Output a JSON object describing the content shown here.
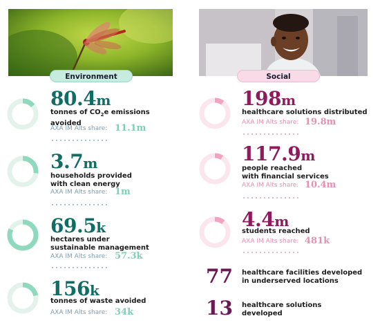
{
  "colors": {
    "environment_accent": "#0f6d63",
    "environment_ring": "#8fd9bf",
    "social_accent": "#8e1b5c",
    "social_ring": "#f2a3c1"
  },
  "environment": {
    "photo": "dragonfly-photo",
    "label": "Environment",
    "stats": [
      {
        "value": "80.4",
        "unit": "m",
        "line1_pre": "tonnes of CO",
        "line1_sub": "2",
        "line1_post": "e emissions",
        "line2": "avoided",
        "share_label": "AXA IM Alts share:",
        "share_value": "11.1m",
        "progress": 0.14
      },
      {
        "value": "3.7",
        "unit": "m",
        "line1": "households provided",
        "line2": "with clean energy",
        "share_label": "AXA IM Alts share:",
        "share_value": "1m",
        "progress": 0.27
      },
      {
        "value": "69.5",
        "unit": "k",
        "line1": "hectares under",
        "line2": "sustainable management",
        "share_label": "AXA IM Alts share:",
        "share_value": "57.3k",
        "progress": 0.82
      },
      {
        "value": "156",
        "unit": "k",
        "line1": "tonnes of waste avoided",
        "share_label": "AXA IM Alts share:",
        "share_value": "34k",
        "progress": 0.22
      }
    ]
  },
  "social": {
    "photo": "smiling-child-photo",
    "label": "Social",
    "stats": [
      {
        "value": "198",
        "unit": "m",
        "line1": "healthcare solutions distributed",
        "share_label": "AXA IM Alts share:",
        "share_value": "19.8m",
        "progress": 0.1
      },
      {
        "value": "117.9",
        "unit": "m",
        "line1": "people reached",
        "line2": "with financial services",
        "share_label": "AXA IM Alts share:",
        "share_value": "10.4m",
        "progress": 0.09
      },
      {
        "value": "4.4",
        "unit": "m",
        "line1": "students reached",
        "share_label": "AXA IM Alts share:",
        "share_value": "481k",
        "progress": 0.11
      }
    ],
    "extra": [
      {
        "value": "77",
        "line1": "healthcare facilities developed",
        "line2": "in underserved locations"
      },
      {
        "value": "13",
        "line1": "healthcare solutions",
        "line2": "developed"
      }
    ]
  }
}
